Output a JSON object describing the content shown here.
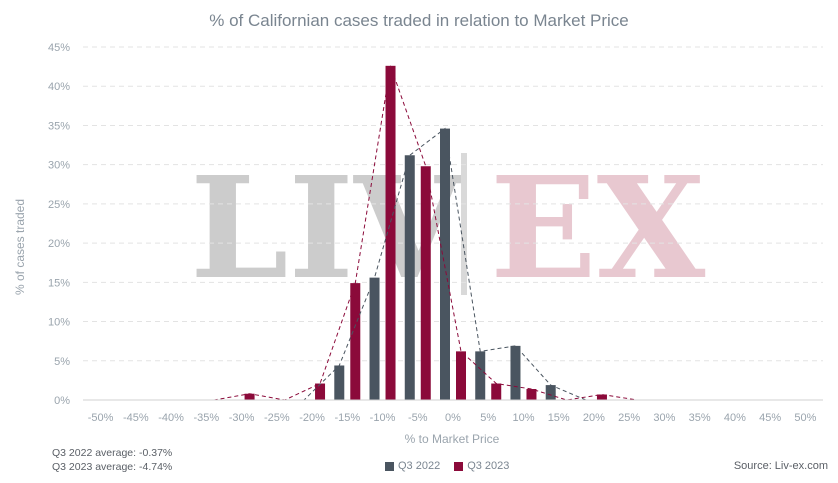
{
  "chart_data": {
    "type": "bar",
    "title": "% of Californian cases traded in relation to Market Price",
    "xlabel": "% to Market Price",
    "ylabel": "% of cases traded",
    "categories": [
      "-50%",
      "-45%",
      "-40%",
      "-35%",
      "-30%",
      "-25%",
      "-20%",
      "-15%",
      "-10%",
      "-5%",
      "0%",
      "5%",
      "10%",
      "15%",
      "20%",
      "25%",
      "30%",
      "35%",
      "40%",
      "45%",
      "50%"
    ],
    "ylim": [
      0,
      45
    ],
    "yticks": [
      "0%",
      "5%",
      "10%",
      "15%",
      "20%",
      "25%",
      "30%",
      "35%",
      "40%",
      "45%"
    ],
    "grid": true,
    "series": [
      {
        "name": "Q3 2022",
        "color": "#4a5560",
        "values": [
          0,
          0,
          0,
          0,
          0,
          0,
          0,
          4.4,
          15.6,
          31.2,
          34.6,
          6.2,
          6.9,
          1.9,
          0,
          0,
          0,
          0,
          0,
          0,
          0
        ]
      },
      {
        "name": "Q3 2023",
        "color": "#8b0a3a",
        "values": [
          0,
          0,
          0,
          0,
          0.8,
          0,
          2.1,
          14.9,
          42.6,
          29.8,
          6.2,
          2.1,
          1.4,
          0,
          0.7,
          0,
          0,
          0,
          0,
          0,
          0
        ]
      }
    ],
    "trendlines": "dashed, per series",
    "legend_position": "bottom-center"
  },
  "watermark": {
    "left": "LIV",
    "right": "EX"
  },
  "notes": {
    "avg_2022": "Q3 2022 average: -0.37%",
    "avg_2023": "Q3 2023 average: -4.74%"
  },
  "source": "Source: Liv-ex.com"
}
